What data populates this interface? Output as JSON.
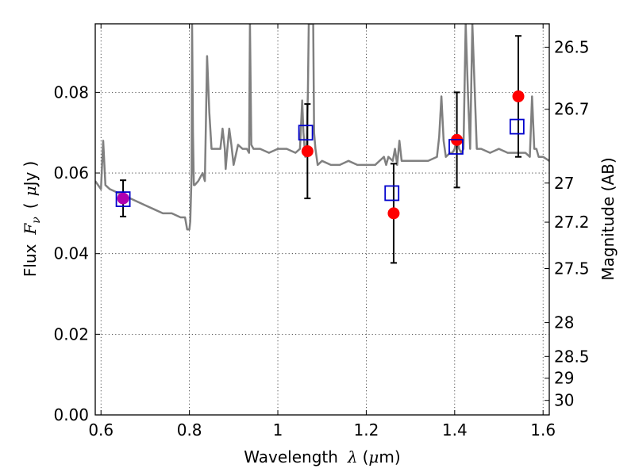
{
  "chart_data": {
    "type": "scatter",
    "xlabel": "Wavelength",
    "xlabel_symbol": "λ",
    "xlabel_unit_open": "(",
    "xlabel_unit_mu": "μ",
    "xlabel_unit_rest": "m)",
    "ylabel": "Flux",
    "ylabel_symbol": "F",
    "ylabel_sub": "ν",
    "ylabel_unit_open": "(",
    "ylabel_unit_mu": "μ",
    "ylabel_unit_rest": "Jy",
    "ylabel_unit_close": ")",
    "y2label": "Magnitude (AB)",
    "xlim": [
      0.587,
      1.614
    ],
    "ylim": [
      0.0,
      0.097
    ],
    "grid": true,
    "x_ticks": [
      0.6,
      0.8,
      1.0,
      1.2,
      1.4,
      1.6
    ],
    "x_tick_labels": [
      "0.6",
      "0.8",
      "1",
      "1.2",
      "1.4",
      "1.6"
    ],
    "y_ticks": [
      0.0,
      0.02,
      0.04,
      0.06,
      0.08
    ],
    "y_tick_labels": [
      "0.00",
      "0.02",
      "0.04",
      "0.06",
      "0.08"
    ],
    "y2_ticks": [
      {
        "label": "26.5",
        "flux": 0.0912
      },
      {
        "label": "26.7",
        "flux": 0.0758
      },
      {
        "label": "27",
        "flux": 0.0575
      },
      {
        "label": "27.2",
        "flux": 0.0478
      },
      {
        "label": "27.5",
        "flux": 0.0363
      },
      {
        "label": "28",
        "flux": 0.0229
      },
      {
        "label": "28.5",
        "flux": 0.0145
      },
      {
        "label": "29",
        "flux": 0.0091
      },
      {
        "label": "30",
        "flux": 0.0036
      }
    ],
    "series": [
      {
        "type": "line",
        "color": "#808080",
        "x": [
          0.587,
          0.6,
          0.605,
          0.61,
          0.62,
          0.64,
          0.66,
          0.68,
          0.7,
          0.72,
          0.74,
          0.76,
          0.78,
          0.79,
          0.795,
          0.8,
          0.802,
          0.805,
          0.806,
          0.808,
          0.81,
          0.812,
          0.82,
          0.83,
          0.835,
          0.84,
          0.845,
          0.85,
          0.86,
          0.87,
          0.875,
          0.88,
          0.882,
          0.885,
          0.89,
          0.895,
          0.9,
          0.91,
          0.92,
          0.93,
          0.935,
          0.937,
          0.94,
          0.945,
          0.96,
          0.98,
          1.0,
          1.02,
          1.04,
          1.05,
          1.055,
          1.058,
          1.062,
          1.065,
          1.068,
          1.07,
          1.075,
          1.08,
          1.082,
          1.085,
          1.09,
          1.1,
          1.12,
          1.14,
          1.16,
          1.18,
          1.2,
          1.22,
          1.23,
          1.24,
          1.245,
          1.25,
          1.26,
          1.265,
          1.27,
          1.275,
          1.28,
          1.3,
          1.32,
          1.34,
          1.36,
          1.365,
          1.37,
          1.375,
          1.38,
          1.39,
          1.395,
          1.4,
          1.405,
          1.41,
          1.415,
          1.42,
          1.425,
          1.43,
          1.435,
          1.44,
          1.45,
          1.46,
          1.48,
          1.5,
          1.52,
          1.54,
          1.56,
          1.57,
          1.575,
          1.58,
          1.585,
          1.59,
          1.6,
          1.614
        ],
        "y": [
          0.058,
          0.056,
          0.068,
          0.057,
          0.056,
          0.055,
          0.054,
          0.053,
          0.052,
          0.051,
          0.05,
          0.05,
          0.049,
          0.049,
          0.046,
          0.046,
          0.048,
          0.06,
          0.097,
          0.07,
          0.057,
          0.057,
          0.058,
          0.06,
          0.058,
          0.089,
          0.075,
          0.066,
          0.066,
          0.066,
          0.071,
          0.066,
          0.061,
          0.065,
          0.071,
          0.067,
          0.062,
          0.067,
          0.066,
          0.066,
          0.065,
          0.097,
          0.067,
          0.066,
          0.066,
          0.065,
          0.066,
          0.066,
          0.065,
          0.066,
          0.078,
          0.07,
          0.064,
          0.066,
          0.08,
          0.097,
          0.097,
          0.097,
          0.07,
          0.066,
          0.062,
          0.063,
          0.062,
          0.062,
          0.063,
          0.062,
          0.062,
          0.062,
          0.063,
          0.064,
          0.062,
          0.064,
          0.063,
          0.066,
          0.062,
          0.068,
          0.063,
          0.063,
          0.063,
          0.063,
          0.064,
          0.069,
          0.079,
          0.068,
          0.064,
          0.065,
          0.065,
          0.066,
          0.069,
          0.066,
          0.065,
          0.066,
          0.097,
          0.08,
          0.066,
          0.097,
          0.066,
          0.066,
          0.065,
          0.066,
          0.065,
          0.065,
          0.065,
          0.064,
          0.079,
          0.066,
          0.066,
          0.064,
          0.064,
          0.063
        ]
      },
      {
        "type": "errorbar",
        "color": "#000000",
        "x": [
          0.65,
          1.067,
          1.262,
          1.405,
          1.544
        ],
        "y": [
          0.0537,
          0.0654,
          0.05,
          0.0682,
          0.079
        ],
        "yerr": [
          0.0045,
          0.0117,
          0.0123,
          0.0118,
          0.015
        ]
      },
      {
        "type": "markers",
        "marker": "circle",
        "color": "#ff0000",
        "x": [
          1.067,
          1.262,
          1.405,
          1.544
        ],
        "y": [
          0.0654,
          0.05,
          0.0682,
          0.079
        ]
      },
      {
        "type": "markers",
        "marker": "circle",
        "color": "#b000b0",
        "x": [
          0.65
        ],
        "y": [
          0.0537
        ]
      },
      {
        "type": "markers",
        "marker": "open-square",
        "color": "#0000cc",
        "x": [
          0.65,
          1.063,
          1.258,
          1.403,
          1.541
        ],
        "y": [
          0.0535,
          0.07,
          0.055,
          0.0665,
          0.0715
        ]
      }
    ]
  }
}
